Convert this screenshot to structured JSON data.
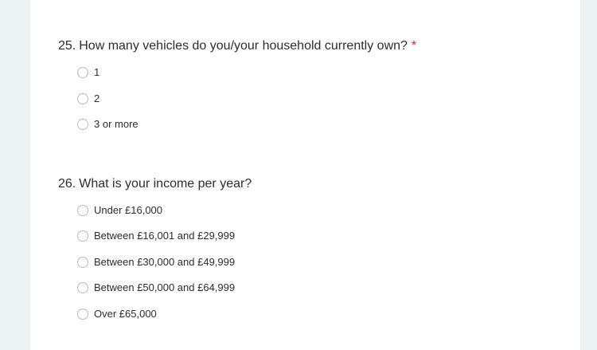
{
  "questions": [
    {
      "number": "25.",
      "text": "How many vehicles do you/your household currently own?",
      "required_mark": "*",
      "options": [
        "1",
        "2",
        "3 or more"
      ]
    },
    {
      "number": "26.",
      "text": "What is your income per year?",
      "options": [
        "Under £16,000",
        "Between £16,001 and £29,999",
        "Between £30,000 and £49,999",
        "Between £50,000 and £64,999",
        "Over £65,000"
      ]
    }
  ],
  "colors": {
    "page_background": "#ecf1f1",
    "card_background": "#ffffff",
    "text": "#2d2d2d",
    "required": "#c0392b",
    "radio_border": "#b9b9b9"
  }
}
